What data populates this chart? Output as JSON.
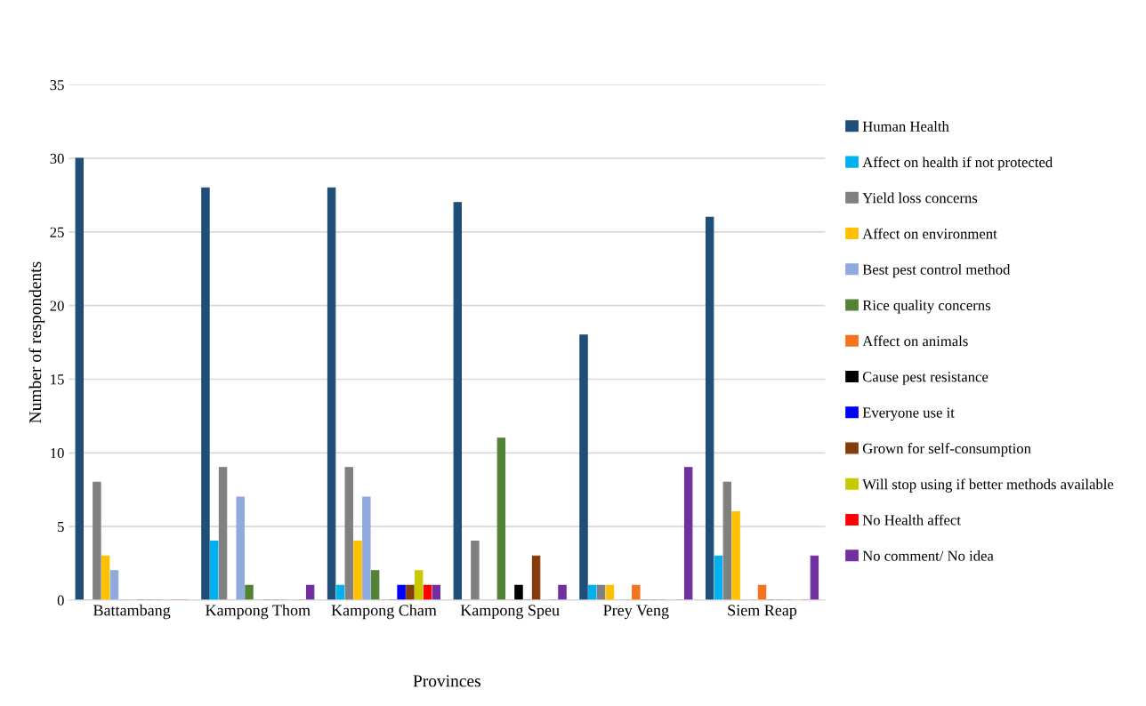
{
  "chart_data": {
    "type": "bar",
    "xlabel": "Provinces",
    "ylabel": "Number of respondents",
    "categories": [
      "Battambang",
      "Kampong Thom",
      "Kampong Cham",
      "Kampong Speu",
      "Prey Veng",
      "Siem Reap"
    ],
    "series": [
      {
        "name": "Human Health",
        "color": "#1f4e79",
        "values": [
          30,
          28,
          28,
          27,
          18,
          26
        ]
      },
      {
        "name": "Affect on health if not protected",
        "color": "#00b0f0",
        "values": [
          0,
          4,
          1,
          0,
          1,
          3
        ]
      },
      {
        "name": "Yield loss concerns",
        "color": "#808080",
        "values": [
          8,
          9,
          9,
          4,
          1,
          8
        ]
      },
      {
        "name": "Affect on environment",
        "color": "#ffc000",
        "values": [
          3,
          0,
          4,
          0,
          1,
          6
        ]
      },
      {
        "name": "Best pest control method",
        "color": "#8faadc",
        "values": [
          2,
          7,
          7,
          0,
          0,
          0
        ]
      },
      {
        "name": "Rice quality concerns",
        "color": "#548235",
        "values": [
          0,
          1,
          2,
          11,
          0,
          0
        ]
      },
      {
        "name": "Affect on animals",
        "color": "#f4731f",
        "values": [
          0,
          0,
          0,
          0,
          1,
          1
        ]
      },
      {
        "name": "Cause pest resistance",
        "color": "#000000",
        "values": [
          0,
          0,
          0,
          1,
          0,
          0
        ]
      },
      {
        "name": "Everyone use it",
        "color": "#0000ff",
        "values": [
          0,
          0,
          1,
          0,
          0,
          0
        ]
      },
      {
        "name": "Grown for self-consumption",
        "color": "#843c0c",
        "values": [
          0,
          0,
          1,
          3,
          0,
          0
        ]
      },
      {
        "name": "Will stop using if better methods available",
        "color": "#c9c900",
        "values": [
          0,
          0,
          2,
          0,
          0,
          0
        ]
      },
      {
        "name": "No Health affect",
        "color": "#ff0000",
        "values": [
          0,
          0,
          1,
          0,
          0,
          0
        ]
      },
      {
        "name": "No comment/ No idea",
        "color": "#7030a0",
        "values": [
          0,
          1,
          1,
          1,
          9,
          3
        ]
      }
    ],
    "ylim": [
      0,
      35
    ],
    "yticks": [
      0,
      5,
      10,
      15,
      20,
      25,
      30,
      35
    ],
    "grid": "y",
    "legend": "right"
  }
}
